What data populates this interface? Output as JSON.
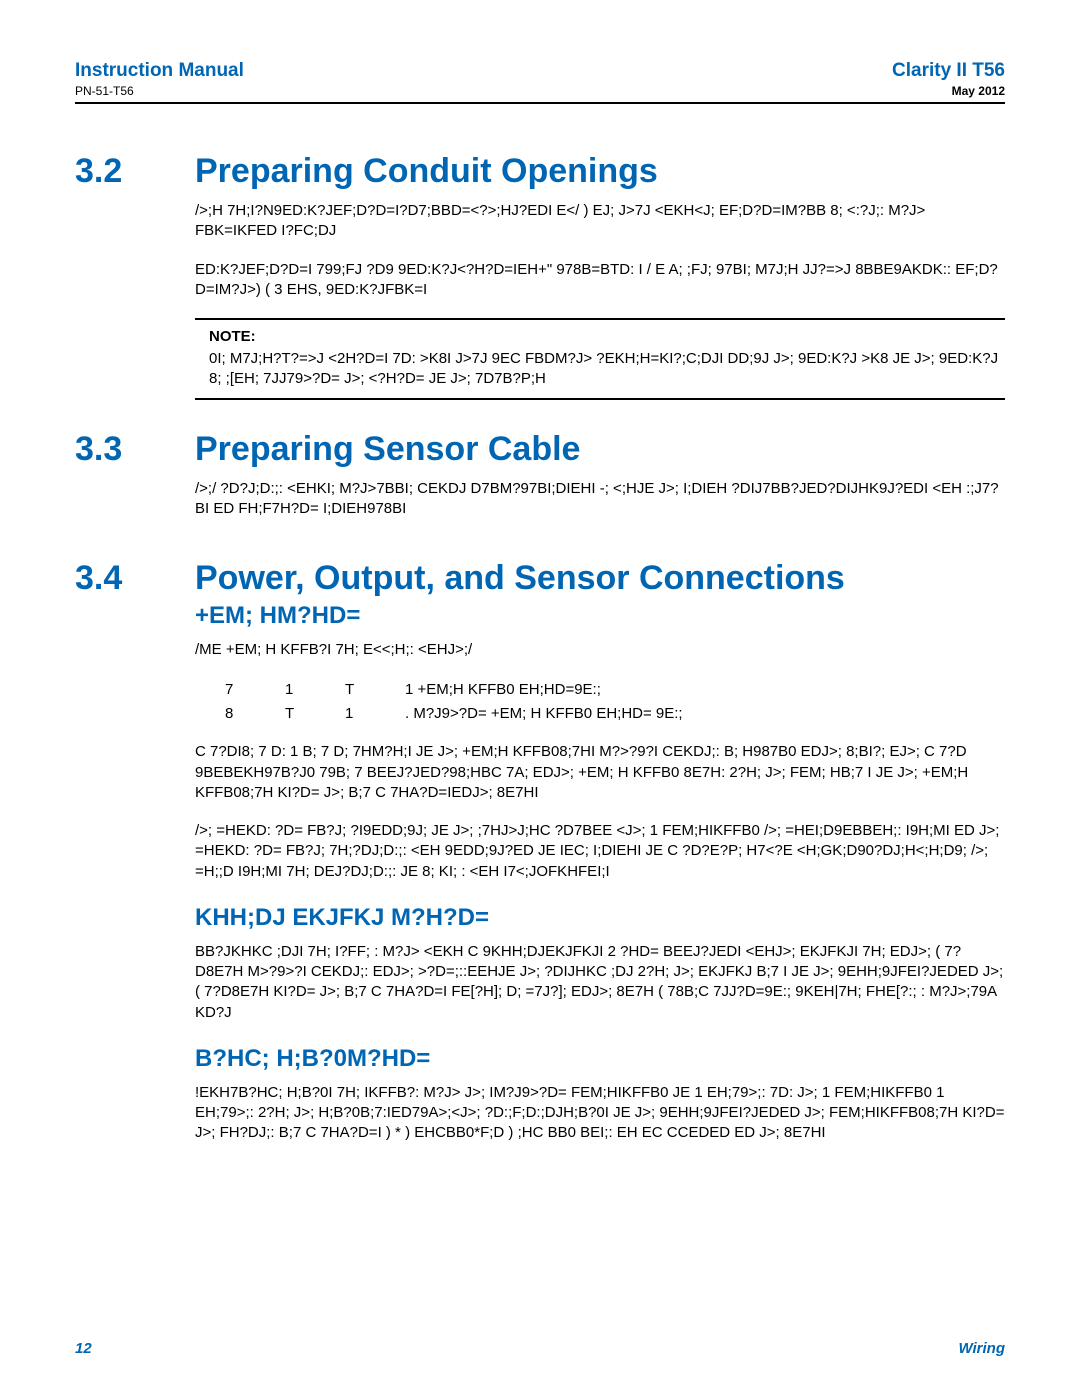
{
  "colors": {
    "accent": "#0066b3",
    "text": "#000000",
    "rule": "#000000",
    "background": "#ffffff"
  },
  "typography": {
    "body_fontsize": 15,
    "section_title_fontsize": 34,
    "subheader_fontsize": 24,
    "header_fontsize": 19
  },
  "header": {
    "left_title": "Instruction Manual",
    "left_sub": "PN-51-T56",
    "right_title": "Clarity II T56",
    "right_sub": "May 2012"
  },
  "sections": {
    "s32": {
      "num": "3.2",
      "title": "Preparing Conduit Openings",
      "para1": "/>;H 7H;I?N9ED:K?JEF;D?D=I?D7;BBD=<?>;HJ?EDI E</          ) EJ; J>7J <EKH<J;  EF;D?D=IM?BB 8; <:?J;: M?J> FBK=IKFED I?FC;DJ",
      "para2": "ED:K?JEF;D?D=I 799;FJ          ?D9 9ED:K?J<?H?D=IEH+\"          978B=BTD: I / E A; ;FJ;  97BI; M7J;H JJ?=>J 8BBE9AKDK::  EF;D?D=IM?J>)  (          3 EHS,          9ED:K?JFBK=I",
      "note_label": "NOTE:",
      "note_text": "0I; M7J;H?T?=>J <2H?D=I 7D: >K8I J>7J 9EC FBDM?J> ?EKH;H=KI?;C;DJI    DD;9J J>; 9ED:K?J >K8 JE J>; 9ED:K?J 8; ;[EH; 7JJ79>?D= J>; <?H?D= JE J>; 7D7B?P;H"
    },
    "s33": {
      "num": "3.3",
      "title": "Preparing Sensor Cable",
      "para1": "/>;/          ?D?J;D:;: <EHKI; M?J>7BBI; CEKDJ D7BM?97BI;DIEHI   -; <;HJE J>; I;DIEH ?DIJ7BB?JED?DIJHK9J?EDI <EH :;J7?BI ED FH;F7H?D= I;DIEH978BI"
    },
    "s34": {
      "num": "3.4",
      "title": "Power, Output, and Sensor Connections",
      "sub1": "+EM; HM?HD=",
      "para_a": "/ME +EM; H KFFB?I 7H; E<<;H;: <EHJ>;/",
      "row1": {
        "a": "7",
        "b": "1",
        "c": "T",
        "rest": "1 +EM;H KFFB0          EH;HD=9E:;"
      },
      "row2": {
        "a": "8",
        "b": "T",
        "c": "1",
        "rest": ". M?J9>?D= +EM; H KFFB0          EH;HD= 9E:;"
      },
      "para_b": " C 7?DI8; 7 D:         1          B; 7 D; 7HM?H;I JE J>; +EM;H KFFB08;7HI M?>?9?I CEKDJ;:  B; H987B0 EDJ>; 8;BI?; EJ>; C 7?D 9BEBEKH97B?J0 79B; 7 BEEJ?JED?98;HBC 7A; EDJ>; +EM; H KFFB0 8E7H: 2?H; J>;  FEM; HB;7 I JE J>; +EM;H KFFB08;7H KI?D= J>;  B;7 C 7HA?D=IEDJ>;  8E7HI",
      "para_c": "/>; =HEKD: ?D= FB?J; ?I9EDD;9J; JE J>; ;7HJ>J;HC ?D7BEE <J>;             1          FEM;HIKFFB0 />; =HEI;D9EBBEH;: I9H;MI ED J>; =HEKD: ?D= FB?J; 7H;?DJ;D:;: <EH 9EDD;9J?ED JE IEC;  I;DIEHI JE C ?D?E?P; H7<?E <H;GK;D90?DJ;H<;H;D9;  />;  =H;;D I9H;MI 7H; DEJ?DJ;D:;:  JE 8;  KI; : <EH    I7<;JOFKHFEI;I",
      "sub2": "KHH;DJ EKJFKJ M?H?D=",
      "para_d": " BB?JKHKC ;DJI 7H;  I?FF; :  M?J> <EKH          C  9KHH;DJEKJFKJI 2 ?HD= BEEJ?JEDI <EHJ>;  EKJFKJI 7H; EDJ>; ( 7?D8E7H M>?9>?I CEKDJ;: EDJ>; >?D=;::EEHJE J>; ?DIJHKC ;DJ 2?H; J>;  EKJFKJ B;7 I JE J>;  9EHH;9JFEI?JEDED J>; ( 7?D8E7H KI?D= J>;  B;7 C 7HA?D=I          FE[?H];          D; =7J?]; EDJ>; 8E7H ( 78B;C 7JJ?D=9E:;  9KEH|7H; FHE[?:; :  M?J>;79A KD?J",
      "sub3": "B?HC; H;B?0M?HD=",
      "para_e": "!EKH7B?HC; H;B?0I 7H; IKFFB?: M?J> J>;  IM?J9>?D= FEM;HIKFFB0          JE        1          EH;79>;:  7D: J>;           1          FEM;HIKFFB0           1          EH;79>;:  2?H; J>;  H;B?0B;7:IED79A>;<J>; ?D:;F;D:;DJH;B?0I JE J>;  9EHH;9JFEI?JEDED J>;  FEM;HIKFFB08;7H KI?D= J>;  FH?DJ;: B;7 C 7HA?D=I ) *  ) EHCBB0*F;D   ) ;HC BB0 BEI;: EH     EC  CCEDED ED J>; 8E7HI"
    }
  },
  "footer": {
    "page": "12",
    "section": "Wiring"
  }
}
